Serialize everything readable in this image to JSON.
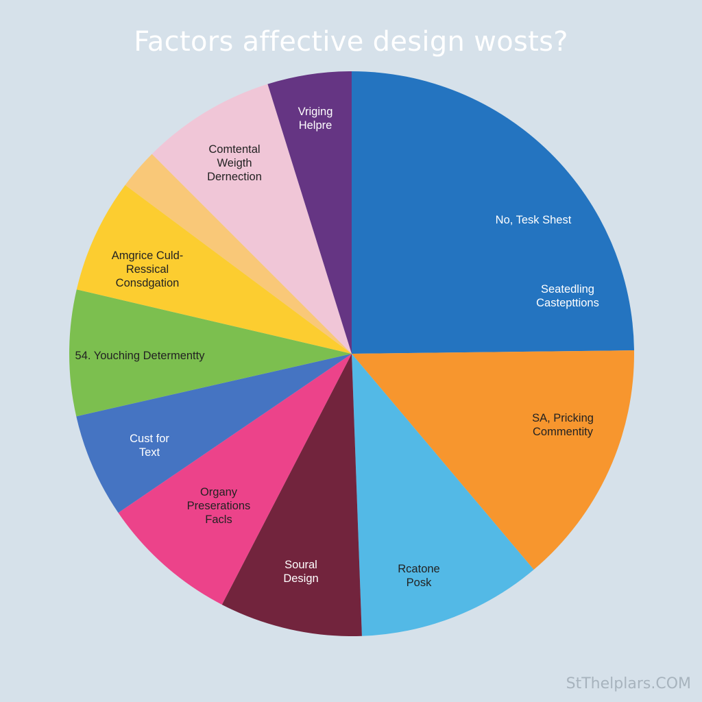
{
  "chart_data": {
    "type": "pie",
    "title": "Factors affective design wosts?",
    "slices": [
      {
        "value": 25.8,
        "color": "#2474c0",
        "text_color": "#ffffff",
        "labels": [
          "No, Tesk Shest",
          "Seatedling Castepttions"
        ]
      },
      {
        "value": 14.6,
        "color": "#f7962e",
        "text_color": "#222222",
        "labels": [
          "SA, Pricking Commentity"
        ]
      },
      {
        "value": 11.0,
        "color": "#53b9e6",
        "text_color": "#222222",
        "labels": [
          "Rcatone Posk"
        ]
      },
      {
        "value": 8.5,
        "color": "#72243d",
        "text_color": "#ffffff",
        "labels": [
          "Soural Design"
        ]
      },
      {
        "value": 8.2,
        "color": "#ec438a",
        "text_color": "#222222",
        "labels": [
          "Organy Preserations Facls"
        ]
      },
      {
        "value": 6.2,
        "color": "#4574c2",
        "text_color": "#ffffff",
        "labels": [
          "Cust for Text"
        ]
      },
      {
        "value": 7.5,
        "color": "#7cbf4f",
        "text_color": "#222222",
        "labels": [
          "54. Youching Determentty"
        ]
      },
      {
        "value": 6.8,
        "color": "#fccd30",
        "text_color": "#222222",
        "labels": [
          "Amgrice Culd- Ressical Consdgation"
        ]
      },
      {
        "value": 2.4,
        "color": "#f9c878",
        "text_color": "#222222",
        "labels": []
      },
      {
        "value": 8.0,
        "color": "#f0c6d7",
        "text_color": "#222222",
        "labels": [
          "Comtental Weigth Dernection"
        ]
      },
      {
        "value": 5.0,
        "color": "#653583",
        "text_color": "#ffffff",
        "labels": [
          "Vriging Helpre"
        ]
      }
    ]
  },
  "watermark": "StThelplars.COM"
}
